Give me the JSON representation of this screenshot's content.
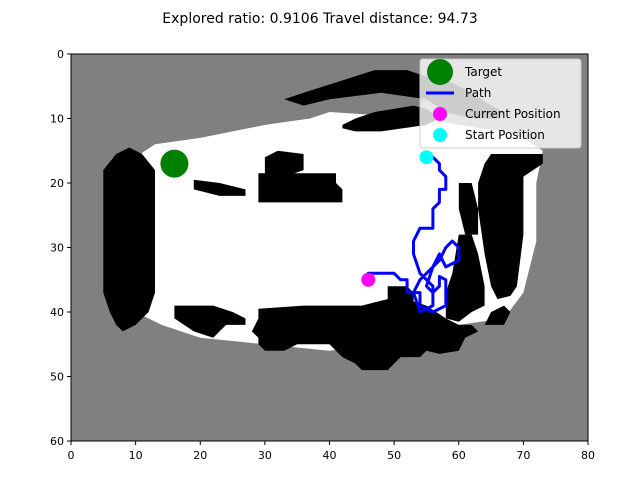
{
  "title": "Explored ratio: 0.9106  Travel distance: 94.73",
  "colors": {
    "unknown": "#808080",
    "free": "#ffffff",
    "obstacle": "#000000",
    "target": "#008000",
    "path": "#0000ff",
    "current": "#ff00ff",
    "start": "#00ffff"
  },
  "legend": {
    "items": [
      {
        "label": "Target",
        "marker": "circle",
        "color": "#008000"
      },
      {
        "label": "Path",
        "marker": "line",
        "color": "#0000ff"
      },
      {
        "label": "Current Position",
        "marker": "circle",
        "color": "#ff00ff"
      },
      {
        "label": "Start Position",
        "marker": "circle",
        "color": "#00ffff"
      }
    ],
    "placement": "top-right"
  },
  "chart_data": {
    "type": "heatmap",
    "xlim": [
      0,
      80
    ],
    "ylim": [
      60,
      0
    ],
    "y_inverted": true,
    "xticks": [
      0,
      10,
      20,
      30,
      40,
      50,
      60,
      70,
      80
    ],
    "yticks": [
      0,
      10,
      20,
      30,
      40,
      50,
      60
    ],
    "grid": false,
    "occupancy_map": {
      "background": "unknown",
      "free_polygons": [
        [
          [
            10,
            16
          ],
          [
            13,
            14
          ],
          [
            20,
            13
          ],
          [
            30,
            11
          ],
          [
            37,
            10
          ],
          [
            40,
            9
          ],
          [
            55,
            10
          ],
          [
            60,
            11
          ],
          [
            67,
            12
          ],
          [
            70,
            13
          ],
          [
            73,
            15
          ],
          [
            72,
            20
          ],
          [
            72,
            29
          ],
          [
            70,
            37
          ],
          [
            67,
            41
          ],
          [
            60,
            42
          ],
          [
            55,
            44
          ],
          [
            47,
            45
          ],
          [
            40,
            46
          ],
          [
            30,
            45
          ],
          [
            20,
            44
          ],
          [
            14,
            42
          ],
          [
            10,
            40
          ],
          [
            8,
            30
          ],
          [
            8,
            20
          ]
        ]
      ],
      "obstacle_polygons": [
        [
          [
            5,
            18
          ],
          [
            7,
            15.5
          ],
          [
            9,
            14.5
          ],
          [
            11,
            15.5
          ],
          [
            13,
            18
          ],
          [
            13,
            37
          ],
          [
            12,
            40
          ],
          [
            10,
            42
          ],
          [
            8,
            43
          ],
          [
            7,
            42
          ],
          [
            6,
            40
          ],
          [
            5,
            37
          ]
        ],
        [
          [
            29,
            18.5
          ],
          [
            41,
            18.5
          ],
          [
            41,
            20
          ],
          [
            42,
            21
          ],
          [
            42,
            23
          ],
          [
            29,
            23
          ]
        ],
        [
          [
            42,
            11
          ],
          [
            44,
            10
          ],
          [
            47,
            9
          ],
          [
            53,
            8
          ],
          [
            55,
            8.5
          ],
          [
            57,
            10
          ],
          [
            55,
            11
          ],
          [
            48,
            12
          ],
          [
            44,
            12
          ],
          [
            42,
            11.5
          ]
        ],
        [
          [
            33,
            7
          ],
          [
            36,
            6
          ],
          [
            47,
            2.5
          ],
          [
            52,
            2.5
          ],
          [
            55,
            3.5
          ],
          [
            58,
            4
          ],
          [
            60,
            5
          ],
          [
            62,
            6
          ],
          [
            65,
            8
          ],
          [
            67,
            9
          ],
          [
            66,
            10
          ],
          [
            62,
            10
          ],
          [
            58,
            9
          ],
          [
            55,
            7
          ],
          [
            48,
            6
          ],
          [
            40,
            7
          ],
          [
            36,
            8
          ]
        ],
        [
          [
            30,
            16
          ],
          [
            32,
            15
          ],
          [
            36,
            15.5
          ],
          [
            36,
            18
          ],
          [
            33,
            19
          ],
          [
            30,
            18.5
          ]
        ],
        [
          [
            19,
            19.5
          ],
          [
            23,
            20
          ],
          [
            27,
            21
          ],
          [
            27,
            22
          ],
          [
            23,
            22
          ],
          [
            19,
            21
          ]
        ],
        [
          [
            65,
            15.5
          ],
          [
            73,
            15.5
          ],
          [
            73,
            17
          ],
          [
            70,
            19
          ],
          [
            70,
            28
          ],
          [
            69,
            36
          ],
          [
            68,
            37.5
          ],
          [
            66,
            38
          ],
          [
            65,
            36
          ],
          [
            64,
            31
          ],
          [
            63,
            24
          ],
          [
            63,
            20
          ],
          [
            64,
            17
          ]
        ],
        [
          [
            60,
            20
          ],
          [
            62,
            20
          ],
          [
            63,
            24
          ],
          [
            63,
            28
          ],
          [
            61,
            28
          ],
          [
            60,
            24
          ]
        ],
        [
          [
            60,
            28
          ],
          [
            62,
            28
          ],
          [
            63,
            31
          ],
          [
            64,
            36
          ],
          [
            64,
            39
          ],
          [
            62,
            40
          ],
          [
            60,
            41.5
          ],
          [
            58,
            41
          ],
          [
            58,
            37
          ],
          [
            59,
            34
          ]
        ],
        [
          [
            16,
            39
          ],
          [
            22,
            39
          ],
          [
            25,
            40
          ],
          [
            27,
            41
          ],
          [
            27,
            42
          ],
          [
            24,
            42
          ],
          [
            22,
            44
          ],
          [
            19,
            43
          ],
          [
            16,
            41
          ]
        ],
        [
          [
            29,
            39.5
          ],
          [
            36,
            39
          ],
          [
            45,
            39
          ],
          [
            49,
            38
          ],
          [
            52,
            38
          ],
          [
            55,
            39
          ],
          [
            58,
            41
          ],
          [
            60,
            42
          ],
          [
            62,
            42
          ],
          [
            63,
            43
          ],
          [
            61,
            44
          ],
          [
            60,
            46
          ],
          [
            57,
            46.5
          ],
          [
            55,
            46
          ],
          [
            54,
            47
          ],
          [
            51,
            47
          ],
          [
            49,
            49
          ],
          [
            45,
            49
          ],
          [
            44,
            48
          ],
          [
            42,
            47
          ],
          [
            40,
            45
          ],
          [
            35,
            45
          ],
          [
            33,
            46
          ],
          [
            30,
            46
          ],
          [
            29,
            45
          ],
          [
            29,
            44
          ],
          [
            28,
            43
          ],
          [
            29,
            41
          ]
        ],
        [
          [
            49,
            36
          ],
          [
            52,
            36
          ],
          [
            53,
            37
          ],
          [
            53,
            40
          ],
          [
            49,
            40
          ]
        ],
        [
          [
            65,
            40
          ],
          [
            67,
            39
          ],
          [
            68,
            40
          ],
          [
            67,
            42
          ],
          [
            64,
            42
          ]
        ]
      ]
    },
    "path": [
      [
        46,
        34
      ],
      [
        50,
        34
      ],
      [
        51,
        35
      ],
      [
        52,
        35
      ],
      [
        52,
        37
      ],
      [
        54,
        37
      ],
      [
        54,
        39
      ],
      [
        56,
        40
      ],
      [
        58,
        39
      ],
      [
        58,
        35
      ],
      [
        57,
        34.5
      ],
      [
        57,
        36
      ],
      [
        56,
        37
      ],
      [
        55,
        36
      ],
      [
        56,
        33
      ],
      [
        57,
        32
      ],
      [
        58,
        30
      ],
      [
        59,
        29
      ],
      [
        60,
        30
      ],
      [
        60,
        32
      ],
      [
        58,
        33
      ],
      [
        57,
        31
      ],
      [
        56,
        33
      ],
      [
        54,
        35
      ],
      [
        53,
        37
      ],
      [
        54,
        40
      ],
      [
        56,
        39
      ],
      [
        56,
        36
      ],
      [
        54,
        34
      ],
      [
        53,
        31
      ],
      [
        53,
        29
      ],
      [
        54,
        27
      ],
      [
        56,
        27
      ],
      [
        56,
        24
      ],
      [
        57,
        23
      ],
      [
        57,
        21
      ],
      [
        58,
        21
      ],
      [
        58,
        19
      ],
      [
        57,
        18
      ],
      [
        57,
        17
      ],
      [
        56,
        16
      ],
      [
        55,
        16
      ]
    ],
    "target": {
      "x": 16,
      "y": 17
    },
    "current_position": {
      "x": 46,
      "y": 35
    },
    "start_position": {
      "x": 55,
      "y": 16
    }
  }
}
